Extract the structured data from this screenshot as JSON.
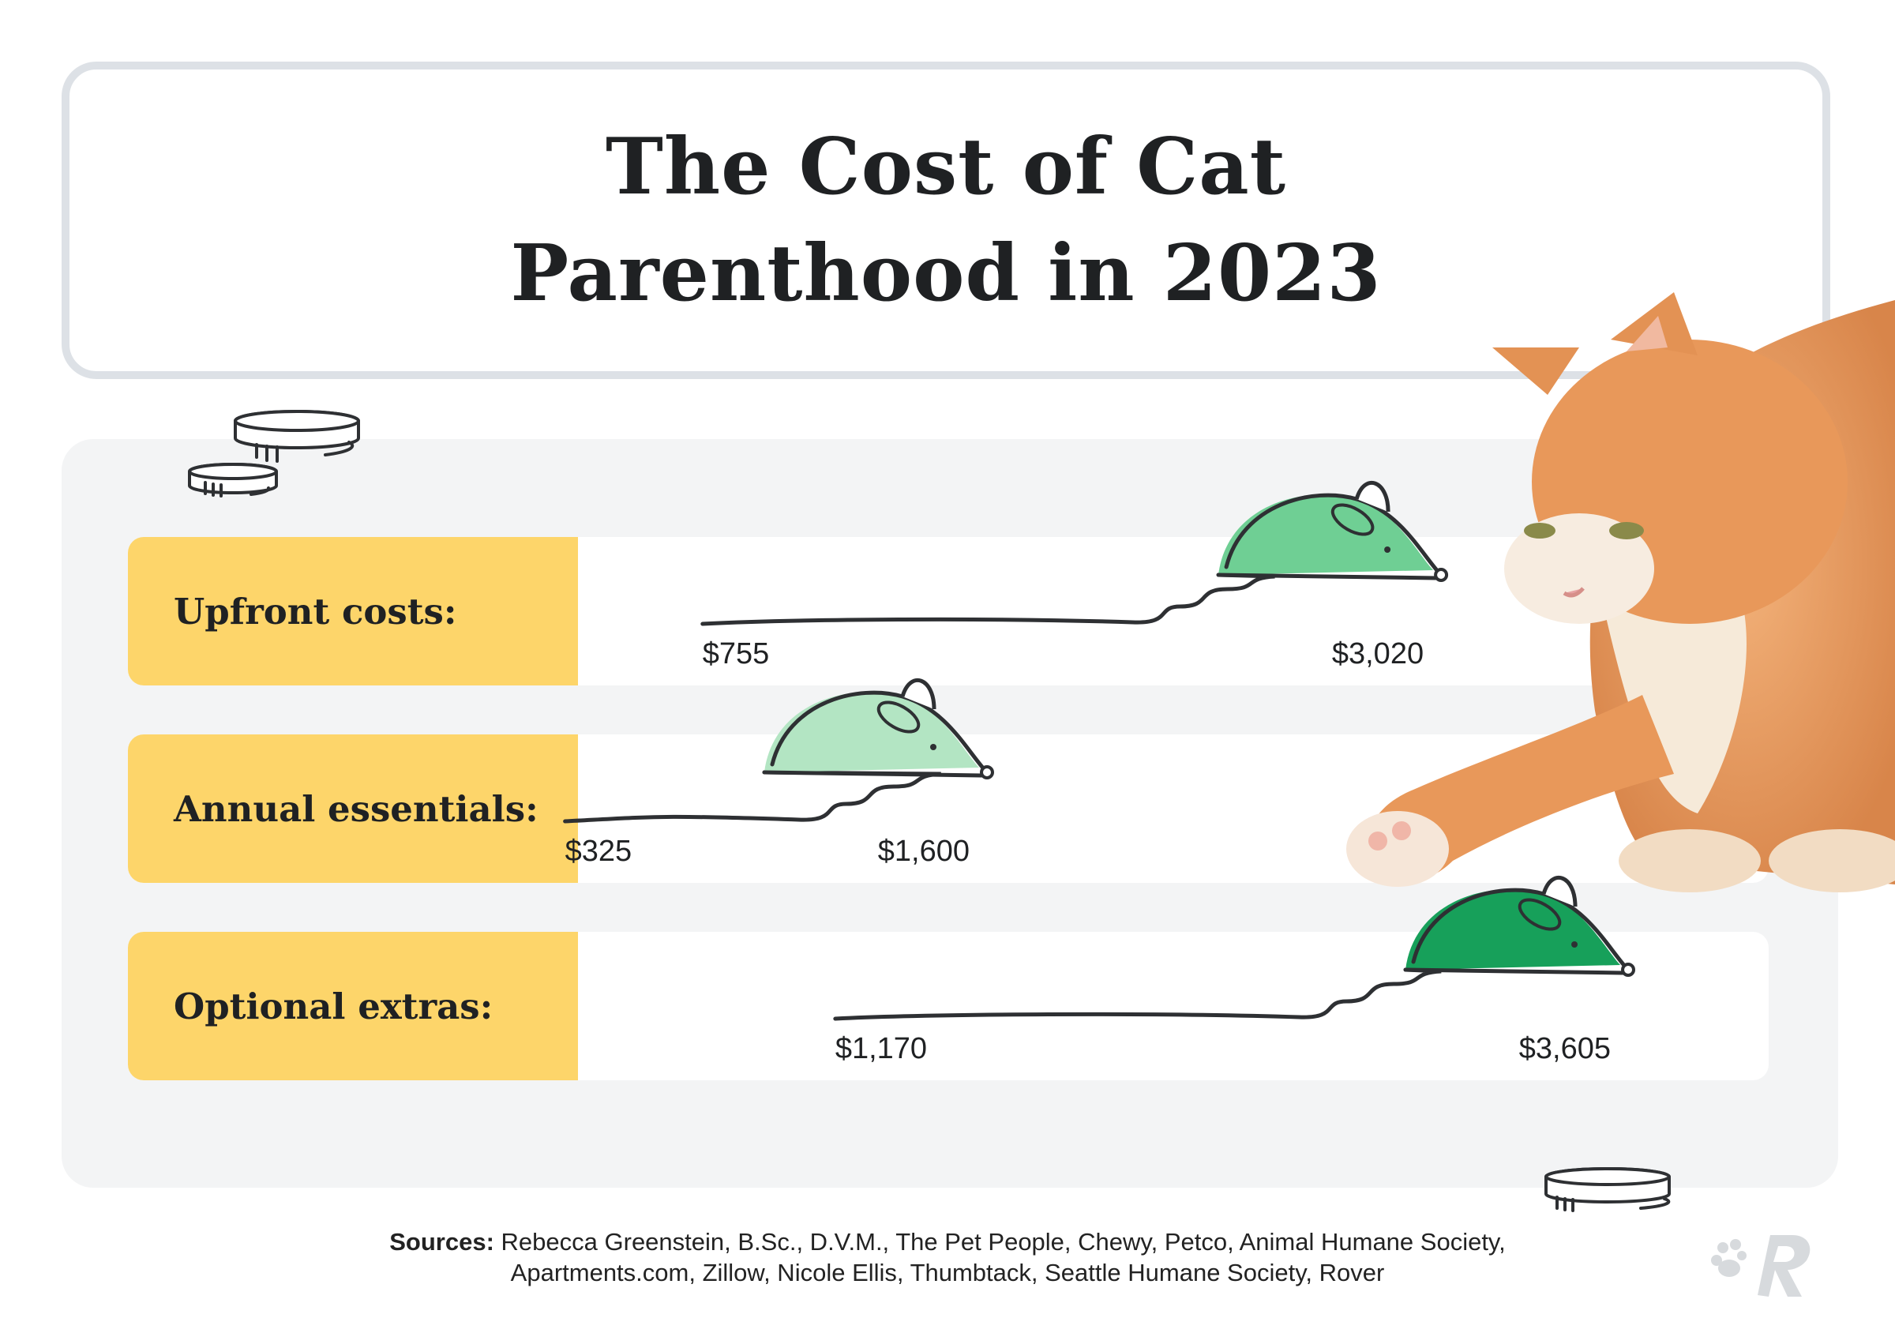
{
  "title": {
    "line1": "The Cost of Cat",
    "line2": "Parenthood in 2023"
  },
  "chart_data": {
    "type": "range",
    "title": "The Cost of Cat Parenthood in 2023",
    "unit": "USD",
    "xlim": [
      0,
      4000
    ],
    "categories": [
      "Upfront costs:",
      "Annual essentials:",
      "Optional extras:"
    ],
    "ranges": [
      {
        "label": "Upfront costs:",
        "low": 755,
        "high": 3020,
        "low_label": "$755",
        "high_label": "$3,020",
        "color": "#6fcf94"
      },
      {
        "label": "Annual essentials:",
        "low": 325,
        "high": 1600,
        "low_label": "$325",
        "high_label": "$1,600",
        "color": "#b3e5c3"
      },
      {
        "label": "Optional extras:",
        "low": 1170,
        "high": 3605,
        "low_label": "$1,170",
        "high_label": "$3,605",
        "color": "#17a05a"
      }
    ]
  },
  "sources": {
    "label": "Sources:",
    "text": "Rebecca Greenstein, B.Sc., D.V.M., The Pet People, Chewy, Petco, Animal Humane Society, Apartments.com, Zillow, Nicole Ellis, Thumbtack, Seattle Humane Society, Rover"
  },
  "colors": {
    "label_bg": "#fdd56a",
    "panel_bg": "#f3f4f5",
    "border": "#dde1e6",
    "ink": "#2e3033"
  },
  "icons": [
    "coin-icon",
    "mouse-icon",
    "cat-image",
    "rover-logo"
  ]
}
